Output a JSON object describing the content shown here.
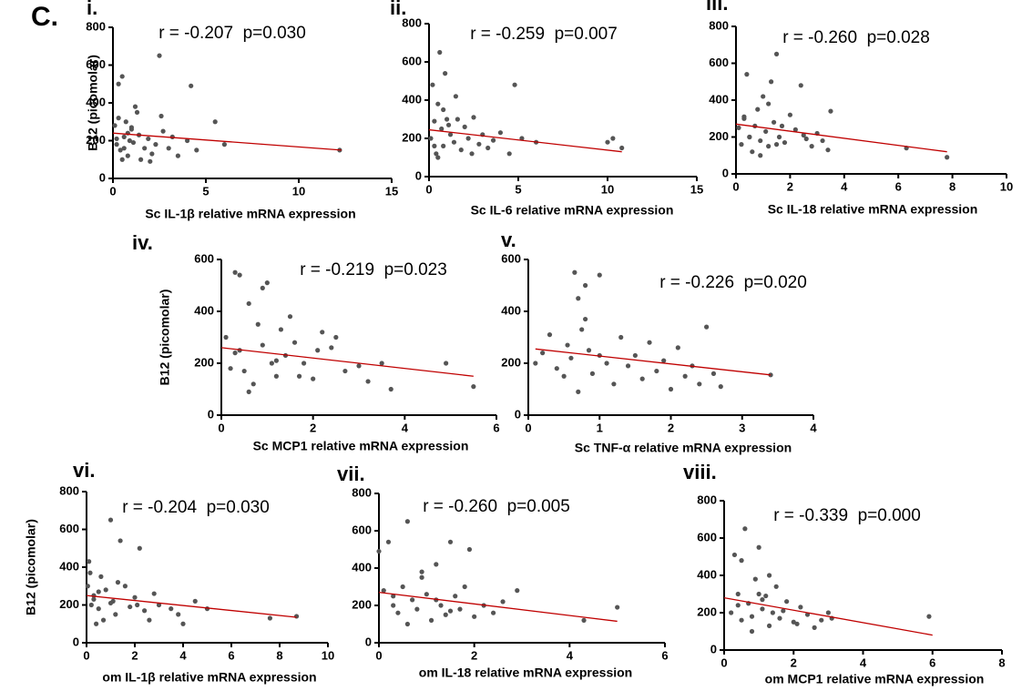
{
  "figure_label": "C.",
  "chart_data": [
    {
      "type": "scatter",
      "panel": "i.",
      "annotation": "r = -0.207  p=0.030",
      "xlabel": "Sc IL-1β relative mRNA expression",
      "ylabel": "B12 (picomolar)",
      "color": "#555555",
      "fit_color": "#c00000",
      "x": [
        0.1,
        0.2,
        0.3,
        0.4,
        0.5,
        0.6,
        0.7,
        0.8,
        0.9,
        1.0,
        1.1,
        1.2,
        1.4,
        1.5,
        1.7,
        1.9,
        2.1,
        2.3,
        2.5,
        2.7,
        3.0,
        3.2,
        3.5,
        4.0,
        4.2,
        4.5,
        5.5,
        6.0,
        0.3,
        0.5,
        0.8,
        1.0,
        1.3,
        2.0,
        2.6,
        0.2,
        0.6,
        12.2
      ],
      "y": [
        280,
        180,
        500,
        150,
        540,
        220,
        300,
        120,
        200,
        260,
        190,
        380,
        230,
        100,
        160,
        210,
        130,
        180,
        650,
        250,
        160,
        220,
        120,
        200,
        490,
        150,
        300,
        180,
        320,
        100,
        240,
        270,
        350,
        90,
        330,
        210,
        160,
        150
      ],
      "fit": {
        "x": [
          0,
          12.3
        ],
        "y": [
          240,
          150
        ]
      },
      "xlim": [
        0,
        15
      ],
      "ylim": [
        0,
        800
      ],
      "xticks": [
        0,
        5,
        10,
        15
      ],
      "yticks": [
        0,
        200,
        400,
        600,
        800
      ]
    },
    {
      "type": "scatter",
      "panel": "ii.",
      "annotation": "r = -0.259  p=0.007",
      "xlabel": "Sc IL-6 relative mRNA expression",
      "color": "#555555",
      "fit_color": "#c00000",
      "x": [
        0.1,
        0.2,
        0.3,
        0.4,
        0.5,
        0.6,
        0.7,
        0.8,
        0.9,
        1.0,
        1.2,
        1.4,
        1.6,
        1.8,
        2.0,
        2.2,
        2.5,
        2.8,
        3.0,
        3.3,
        3.6,
        4.0,
        4.5,
        4.8,
        5.2,
        6.0,
        10.0,
        10.3,
        10.8,
        0.5,
        0.8,
        1.1,
        1.5,
        2.4,
        0.3
      ],
      "y": [
        200,
        480,
        290,
        120,
        380,
        650,
        250,
        160,
        540,
        300,
        220,
        180,
        300,
        140,
        260,
        200,
        310,
        170,
        220,
        150,
        190,
        230,
        120,
        480,
        200,
        180,
        180,
        200,
        150,
        100,
        350,
        270,
        420,
        120,
        160
      ],
      "fit": {
        "x": [
          0,
          10.8
        ],
        "y": [
          245,
          130
        ]
      },
      "xlim": [
        0,
        15
      ],
      "ylim": [
        0,
        800
      ],
      "xticks": [
        0,
        5,
        10,
        15
      ],
      "yticks": [
        0,
        200,
        400,
        600,
        800
      ]
    },
    {
      "type": "scatter",
      "panel": "iii.",
      "annotation": "r = -0.260  p=0.028",
      "xlabel": "Sc IL-18 relative mRNA expression",
      "color": "#555555",
      "fit_color": "#c00000",
      "x": [
        0.1,
        0.2,
        0.3,
        0.4,
        0.5,
        0.6,
        0.7,
        0.8,
        0.9,
        1.0,
        1.1,
        1.2,
        1.3,
        1.4,
        1.5,
        1.6,
        1.8,
        2.0,
        2.2,
        2.4,
        2.6,
        2.8,
        3.0,
        3.2,
        3.4,
        3.5,
        6.3,
        7.8,
        0.5,
        0.9,
        1.2,
        1.7,
        2.5,
        0.3,
        1.5
      ],
      "y": [
        250,
        160,
        300,
        540,
        200,
        120,
        260,
        350,
        180,
        420,
        230,
        150,
        500,
        280,
        650,
        200,
        170,
        320,
        240,
        480,
        190,
        150,
        220,
        180,
        130,
        340,
        140,
        90,
        200,
        100,
        380,
        260,
        210,
        310,
        160
      ],
      "fit": {
        "x": [
          0,
          7.8
        ],
        "y": [
          270,
          120
        ]
      },
      "xlim": [
        0,
        10
      ],
      "ylim": [
        0,
        800
      ],
      "xticks": [
        0,
        2,
        4,
        6,
        8,
        10
      ],
      "yticks": [
        0,
        200,
        400,
        600,
        800
      ]
    },
    {
      "type": "scatter",
      "panel": "iv.",
      "annotation": "r = -0.219  p=0.023",
      "xlabel": "Sc MCP1 relative mRNA expression",
      "ylabel": "B12 (picomolar)",
      "color": "#555555",
      "fit_color": "#c00000",
      "x": [
        0.1,
        0.2,
        0.3,
        0.4,
        0.5,
        0.6,
        0.7,
        0.8,
        0.9,
        1.0,
        1.1,
        1.2,
        1.3,
        1.4,
        1.5,
        1.6,
        1.8,
        2.0,
        2.2,
        2.4,
        2.5,
        2.7,
        3.0,
        3.2,
        3.5,
        3.7,
        4.9,
        5.5,
        0.3,
        0.6,
        0.9,
        1.2,
        1.7,
        2.1,
        0.4
      ],
      "y": [
        300,
        180,
        550,
        250,
        170,
        430,
        120,
        350,
        270,
        510,
        200,
        150,
        330,
        230,
        380,
        280,
        200,
        140,
        320,
        260,
        300,
        170,
        190,
        130,
        200,
        100,
        200,
        110,
        240,
        90,
        490,
        210,
        150,
        250,
        540
      ],
      "fit": {
        "x": [
          0,
          5.5
        ],
        "y": [
          260,
          150
        ]
      },
      "xlim": [
        0,
        6
      ],
      "ylim": [
        0,
        600
      ],
      "xticks": [
        0,
        2,
        4,
        6
      ],
      "yticks": [
        0,
        200,
        400,
        600
      ]
    },
    {
      "type": "scatter",
      "panel": "v.",
      "annotation": "r = -0.226  p=0.020",
      "xlabel": "Sc TNF-α relative mRNA expression",
      "color": "#555555",
      "fit_color": "#c00000",
      "x": [
        0.1,
        0.2,
        0.3,
        0.4,
        0.5,
        0.55,
        0.6,
        0.65,
        0.7,
        0.75,
        0.8,
        0.85,
        0.9,
        1.0,
        1.1,
        1.2,
        1.3,
        1.4,
        1.5,
        1.6,
        1.7,
        1.8,
        1.9,
        2.0,
        2.1,
        2.2,
        2.3,
        2.4,
        2.5,
        2.6,
        2.7,
        3.4,
        0.8,
        1.0,
        0.7
      ],
      "y": [
        200,
        240,
        310,
        180,
        150,
        270,
        220,
        550,
        90,
        330,
        370,
        250,
        160,
        540,
        200,
        120,
        300,
        190,
        230,
        140,
        280,
        170,
        210,
        100,
        260,
        150,
        190,
        120,
        340,
        160,
        110,
        155,
        500,
        230,
        450
      ],
      "fit": {
        "x": [
          0.1,
          3.4
        ],
        "y": [
          255,
          155
        ]
      },
      "xlim": [
        0,
        4
      ],
      "ylim": [
        0,
        600
      ],
      "xticks": [
        0,
        1,
        2,
        3,
        4
      ],
      "yticks": [
        0,
        200,
        400,
        600
      ]
    },
    {
      "type": "scatter",
      "panel": "vi.",
      "annotation": "r = -0.204  p=0.030",
      "xlabel": "om IL-1β relative mRNA expression",
      "ylabel": "B12 (picomolar)",
      "color": "#555555",
      "fit_color": "#c00000",
      "x": [
        0.05,
        0.1,
        0.2,
        0.3,
        0.4,
        0.5,
        0.6,
        0.8,
        1.0,
        1.1,
        1.2,
        1.4,
        1.6,
        1.8,
        2.0,
        2.2,
        2.4,
        2.6,
        2.8,
        3.0,
        3.5,
        3.8,
        4.0,
        4.5,
        5.0,
        7.6,
        8.7,
        0.15,
        0.3,
        0.7,
        1.3,
        2.1,
        0.5,
        1.0
      ],
      "y": [
        300,
        430,
        200,
        250,
        100,
        180,
        350,
        280,
        650,
        220,
        150,
        540,
        300,
        190,
        240,
        500,
        170,
        120,
        260,
        200,
        180,
        150,
        100,
        220,
        180,
        130,
        140,
        370,
        230,
        120,
        320,
        200,
        270,
        210
      ],
      "fit": {
        "x": [
          0,
          8.7
        ],
        "y": [
          250,
          135
        ]
      },
      "xlim": [
        0,
        10
      ],
      "ylim": [
        0,
        800
      ],
      "xticks": [
        0,
        2,
        4,
        6,
        8,
        10
      ],
      "yticks": [
        0,
        200,
        400,
        600,
        800
      ]
    },
    {
      "type": "scatter",
      "panel": "vii.",
      "annotation": "r = -0.260  p=0.005",
      "xlabel": "om IL-18 relative mRNA expression",
      "color": "#555555",
      "fit_color": "#c00000",
      "x": [
        0.0,
        0.1,
        0.2,
        0.3,
        0.4,
        0.5,
        0.6,
        0.7,
        0.8,
        0.9,
        1.0,
        1.1,
        1.2,
        1.3,
        1.4,
        1.5,
        1.6,
        1.7,
        1.8,
        2.0,
        2.2,
        2.4,
        2.6,
        2.9,
        4.3,
        5.0,
        0.6,
        0.9,
        1.2,
        1.5,
        0.3,
        1.9
      ],
      "y": [
        490,
        280,
        540,
        200,
        160,
        300,
        650,
        230,
        180,
        350,
        260,
        120,
        420,
        200,
        150,
        540,
        250,
        180,
        300,
        140,
        200,
        160,
        220,
        280,
        120,
        190,
        100,
        380,
        230,
        170,
        250,
        500
      ],
      "fit": {
        "x": [
          0,
          5
        ],
        "y": [
          270,
          115
        ]
      },
      "xlim": [
        0,
        6
      ],
      "ylim": [
        0,
        800
      ],
      "xticks": [
        0,
        2,
        4,
        6
      ],
      "yticks": [
        0,
        200,
        400,
        600,
        800
      ]
    },
    {
      "type": "scatter",
      "panel": "viii.",
      "annotation": "r = -0.339  p=0.000",
      "xlabel": "om MCP1 relative mRNA expression",
      "color": "#555555",
      "fit_color": "#c00000",
      "x": [
        0.2,
        0.3,
        0.4,
        0.5,
        0.6,
        0.7,
        0.8,
        0.9,
        1.0,
        1.1,
        1.2,
        1.3,
        1.4,
        1.5,
        1.6,
        1.8,
        2.0,
        2.2,
        2.4,
        2.6,
        2.8,
        3.0,
        3.1,
        5.9,
        0.5,
        0.8,
        1.1,
        1.3,
        1.7,
        2.1,
        0.4,
        1.0
      ],
      "y": [
        200,
        510,
        300,
        160,
        650,
        250,
        180,
        380,
        550,
        220,
        290,
        130,
        200,
        340,
        170,
        260,
        150,
        230,
        190,
        120,
        160,
        200,
        170,
        180,
        480,
        100,
        270,
        400,
        210,
        140,
        240,
        300
      ],
      "fit": {
        "x": [
          0,
          6
        ],
        "y": [
          280,
          80
        ]
      },
      "xlim": [
        0,
        8
      ],
      "ylim": [
        0,
        800
      ],
      "xticks": [
        0,
        2,
        4,
        6,
        8
      ],
      "yticks": [
        0,
        200,
        400,
        600,
        800
      ]
    }
  ]
}
